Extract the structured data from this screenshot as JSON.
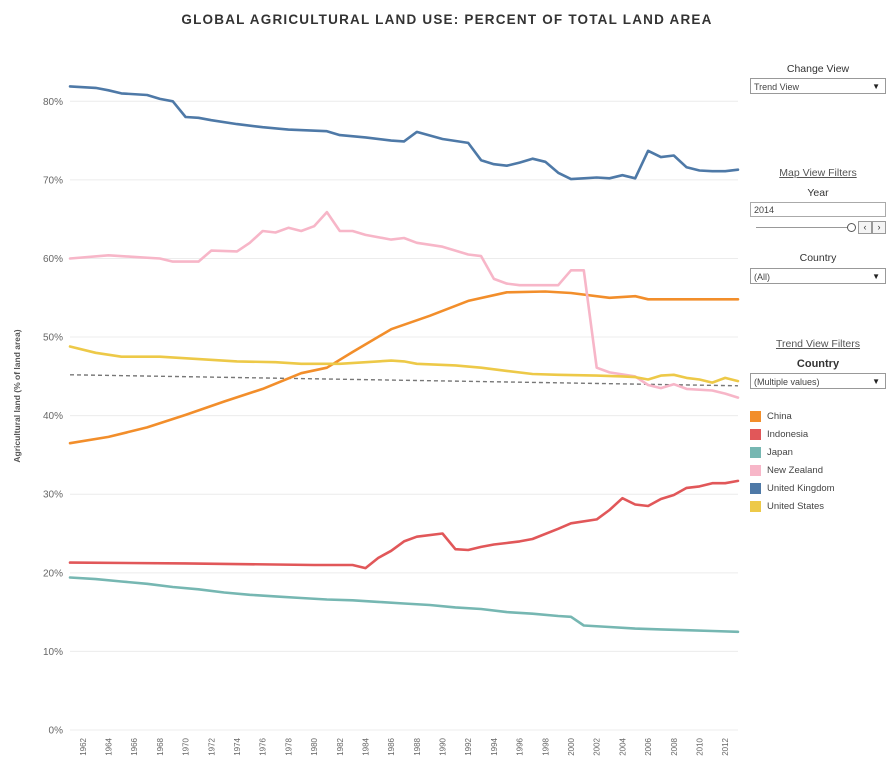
{
  "title": "GLOBAL AGRICULTURAL LAND USE: PERCENT OF TOTAL LAND AREA",
  "controls": {
    "change_view_label": "Change View",
    "change_view_value": "Trend View",
    "map_filters_label": "Map View Filters",
    "year_label": "Year",
    "year_value": "2014",
    "country_label": "Country",
    "country_value": "(All)",
    "trend_filters_label": "Trend View Filters",
    "trend_country_label": "Country",
    "trend_country_value": "(Multiple values)",
    "step_left_icon": "‹",
    "step_right_icon": "›"
  },
  "chart_data": {
    "type": "line",
    "title": "GLOBAL AGRICULTURAL LAND USE: PERCENT OF TOTAL LAND AREA",
    "ylabel": "Agricultural land (% of land area)",
    "xlabel": "",
    "ylim": [
      0,
      85
    ],
    "yticks": [
      0,
      10,
      20,
      30,
      40,
      50,
      60,
      70,
      80
    ],
    "ytick_labels": [
      "0%",
      "10%",
      "20%",
      "30%",
      "40%",
      "50%",
      "60%",
      "70%",
      "80%"
    ],
    "xlim": [
      1961,
      2013
    ],
    "xticks": [
      1962,
      1964,
      1966,
      1968,
      1970,
      1972,
      1974,
      1976,
      1978,
      1980,
      1982,
      1984,
      1986,
      1988,
      1990,
      1992,
      1994,
      1996,
      1998,
      2000,
      2002,
      2004,
      2006,
      2008,
      2010,
      2012
    ],
    "grid": "horizontal",
    "legend_position": "right",
    "reference_line": {
      "style": "dashed",
      "start": [
        1961,
        45.2
      ],
      "end": [
        2013,
        43.8
      ]
    },
    "series": [
      {
        "name": "China",
        "color": "#f28e2b",
        "points": [
          [
            1961,
            36.5
          ],
          [
            1964,
            37.3
          ],
          [
            1967,
            38.5
          ],
          [
            1970,
            40.1
          ],
          [
            1973,
            41.8
          ],
          [
            1976,
            43.4
          ],
          [
            1979,
            45.4
          ],
          [
            1981,
            46.1
          ],
          [
            1983,
            48.1
          ],
          [
            1986,
            51.0
          ],
          [
            1989,
            52.7
          ],
          [
            1992,
            54.6
          ],
          [
            1995,
            55.7
          ],
          [
            1998,
            55.8
          ],
          [
            2000,
            55.6
          ],
          [
            2003,
            55.0
          ],
          [
            2005,
            55.2
          ],
          [
            2006,
            54.8
          ],
          [
            2013,
            54.8
          ]
        ]
      },
      {
        "name": "Indonesia",
        "color": "#e15759",
        "points": [
          [
            1961,
            21.3
          ],
          [
            1970,
            21.2
          ],
          [
            1980,
            21.0
          ],
          [
            1983,
            21.0
          ],
          [
            1984,
            20.6
          ],
          [
            1985,
            21.9
          ],
          [
            1986,
            22.8
          ],
          [
            1987,
            24.0
          ],
          [
            1988,
            24.6
          ],
          [
            1990,
            25.0
          ],
          [
            1991,
            23.0
          ],
          [
            1992,
            22.9
          ],
          [
            1993,
            23.3
          ],
          [
            1994,
            23.6
          ],
          [
            1995,
            23.8
          ],
          [
            1996,
            24.0
          ],
          [
            1997,
            24.3
          ],
          [
            1999,
            25.6
          ],
          [
            2000,
            26.3
          ],
          [
            2002,
            26.8
          ],
          [
            2003,
            28.0
          ],
          [
            2004,
            29.5
          ],
          [
            2005,
            28.7
          ],
          [
            2006,
            28.5
          ],
          [
            2007,
            29.4
          ],
          [
            2008,
            29.9
          ],
          [
            2009,
            30.8
          ],
          [
            2010,
            31.0
          ],
          [
            2011,
            31.4
          ],
          [
            2012,
            31.4
          ],
          [
            2013,
            31.7
          ]
        ]
      },
      {
        "name": "Japan",
        "color": "#76b7b2",
        "points": [
          [
            1961,
            19.4
          ],
          [
            1963,
            19.2
          ],
          [
            1965,
            18.9
          ],
          [
            1967,
            18.6
          ],
          [
            1969,
            18.2
          ],
          [
            1971,
            17.9
          ],
          [
            1973,
            17.5
          ],
          [
            1975,
            17.2
          ],
          [
            1977,
            17.0
          ],
          [
            1979,
            16.8
          ],
          [
            1981,
            16.6
          ],
          [
            1983,
            16.5
          ],
          [
            1985,
            16.3
          ],
          [
            1987,
            16.1
          ],
          [
            1989,
            15.9
          ],
          [
            1991,
            15.6
          ],
          [
            1993,
            15.4
          ],
          [
            1995,
            15.0
          ],
          [
            1997,
            14.8
          ],
          [
            1999,
            14.5
          ],
          [
            2000,
            14.4
          ],
          [
            2001,
            13.3
          ],
          [
            2003,
            13.1
          ],
          [
            2005,
            12.9
          ],
          [
            2007,
            12.8
          ],
          [
            2009,
            12.7
          ],
          [
            2011,
            12.6
          ],
          [
            2013,
            12.5
          ]
        ]
      },
      {
        "name": "New Zealand",
        "color": "#f7b6c8",
        "points": [
          [
            1961,
            60.0
          ],
          [
            1964,
            60.4
          ],
          [
            1966,
            60.2
          ],
          [
            1968,
            60.0
          ],
          [
            1969,
            59.6
          ],
          [
            1971,
            59.6
          ],
          [
            1972,
            61.0
          ],
          [
            1974,
            60.9
          ],
          [
            1975,
            62.0
          ],
          [
            1976,
            63.5
          ],
          [
            1977,
            63.3
          ],
          [
            1978,
            63.9
          ],
          [
            1979,
            63.5
          ],
          [
            1980,
            64.1
          ],
          [
            1981,
            65.9
          ],
          [
            1982,
            63.5
          ],
          [
            1983,
            63.5
          ],
          [
            1984,
            63.0
          ],
          [
            1986,
            62.4
          ],
          [
            1987,
            62.6
          ],
          [
            1988,
            62.0
          ],
          [
            1990,
            61.5
          ],
          [
            1991,
            61.0
          ],
          [
            1992,
            60.5
          ],
          [
            1993,
            60.3
          ],
          [
            1994,
            57.4
          ],
          [
            1995,
            56.8
          ],
          [
            1996,
            56.6
          ],
          [
            1999,
            56.6
          ],
          [
            2000,
            58.5
          ],
          [
            2001,
            58.5
          ],
          [
            2002,
            46.1
          ],
          [
            2003,
            45.5
          ],
          [
            2005,
            45.0
          ],
          [
            2006,
            43.9
          ],
          [
            2007,
            43.5
          ],
          [
            2008,
            44.0
          ],
          [
            2009,
            43.4
          ],
          [
            2011,
            43.2
          ],
          [
            2012,
            42.8
          ],
          [
            2013,
            42.3
          ]
        ]
      },
      {
        "name": "United Kingdom",
        "color": "#4e79a7",
        "points": [
          [
            1961,
            81.9
          ],
          [
            1963,
            81.7
          ],
          [
            1964,
            81.4
          ],
          [
            1965,
            81.0
          ],
          [
            1967,
            80.8
          ],
          [
            1968,
            80.3
          ],
          [
            1969,
            80.0
          ],
          [
            1970,
            78.0
          ],
          [
            1971,
            77.9
          ],
          [
            1972,
            77.6
          ],
          [
            1974,
            77.1
          ],
          [
            1976,
            76.7
          ],
          [
            1978,
            76.4
          ],
          [
            1981,
            76.2
          ],
          [
            1982,
            75.7
          ],
          [
            1984,
            75.4
          ],
          [
            1986,
            75.0
          ],
          [
            1987,
            74.9
          ],
          [
            1988,
            76.1
          ],
          [
            1990,
            75.2
          ],
          [
            1992,
            74.7
          ],
          [
            1993,
            72.5
          ],
          [
            1994,
            72.0
          ],
          [
            1995,
            71.8
          ],
          [
            1996,
            72.2
          ],
          [
            1997,
            72.7
          ],
          [
            1998,
            72.3
          ],
          [
            1999,
            70.9
          ],
          [
            2000,
            70.1
          ],
          [
            2001,
            70.2
          ],
          [
            2002,
            70.3
          ],
          [
            2003,
            70.2
          ],
          [
            2004,
            70.6
          ],
          [
            2005,
            70.2
          ],
          [
            2006,
            73.7
          ],
          [
            2007,
            72.9
          ],
          [
            2008,
            73.1
          ],
          [
            2009,
            71.6
          ],
          [
            2010,
            71.2
          ],
          [
            2011,
            71.1
          ],
          [
            2012,
            71.1
          ],
          [
            2013,
            71.3
          ]
        ]
      },
      {
        "name": "United States",
        "color": "#edc948",
        "points": [
          [
            1961,
            48.8
          ],
          [
            1963,
            48.0
          ],
          [
            1965,
            47.5
          ],
          [
            1968,
            47.5
          ],
          [
            1971,
            47.2
          ],
          [
            1974,
            46.9
          ],
          [
            1977,
            46.8
          ],
          [
            1979,
            46.6
          ],
          [
            1982,
            46.6
          ],
          [
            1986,
            47.0
          ],
          [
            1987,
            46.9
          ],
          [
            1988,
            46.6
          ],
          [
            1991,
            46.4
          ],
          [
            1993,
            46.1
          ],
          [
            1995,
            45.7
          ],
          [
            1997,
            45.3
          ],
          [
            1999,
            45.2
          ],
          [
            2002,
            45.1
          ],
          [
            2004,
            45.0
          ],
          [
            2005,
            44.9
          ],
          [
            2006,
            44.6
          ],
          [
            2007,
            45.1
          ],
          [
            2008,
            45.2
          ],
          [
            2009,
            44.8
          ],
          [
            2010,
            44.6
          ],
          [
            2011,
            44.2
          ],
          [
            2012,
            44.8
          ],
          [
            2013,
            44.4
          ]
        ]
      }
    ]
  }
}
